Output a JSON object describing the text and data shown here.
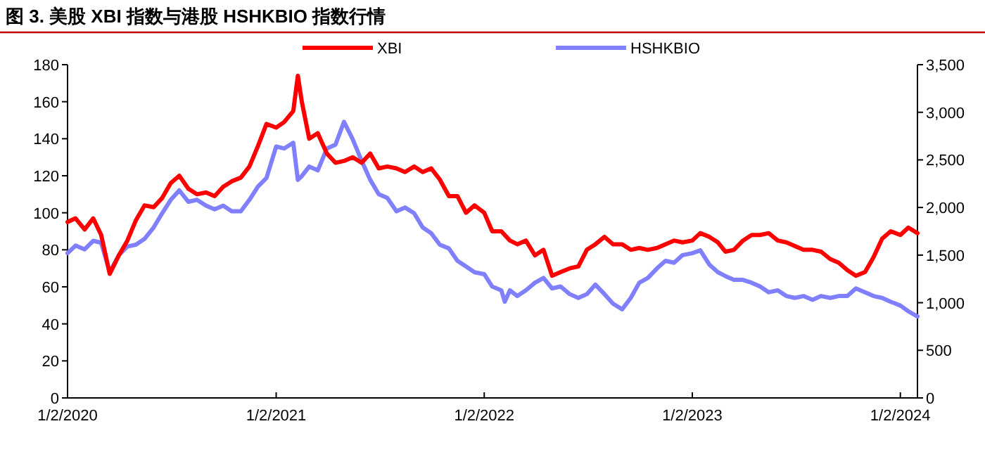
{
  "chart_data": {
    "type": "line",
    "title": "图 3. 美股 XBI 指数与港股 HSHKBIO 指数行情",
    "legend": "top",
    "grid": false,
    "marker": "none",
    "line_style": "solid",
    "x": [
      "2020-01-02",
      "2020-01-16",
      "2020-02-01",
      "2020-02-16",
      "2020-03-01",
      "2020-03-16",
      "2020-04-01",
      "2020-04-16",
      "2020-05-01",
      "2020-05-16",
      "2020-06-01",
      "2020-06-16",
      "2020-07-01",
      "2020-07-16",
      "2020-08-01",
      "2020-08-16",
      "2020-09-01",
      "2020-09-16",
      "2020-10-01",
      "2020-10-16",
      "2020-11-01",
      "2020-11-16",
      "2020-12-01",
      "2020-12-16",
      "2021-01-02",
      "2021-01-16",
      "2021-02-01",
      "2021-02-09",
      "2021-02-16",
      "2021-03-01",
      "2021-03-16",
      "2021-04-01",
      "2021-04-16",
      "2021-05-01",
      "2021-05-16",
      "2021-06-01",
      "2021-06-16",
      "2021-07-01",
      "2021-07-16",
      "2021-08-01",
      "2021-08-16",
      "2021-09-01",
      "2021-09-16",
      "2021-10-01",
      "2021-10-16",
      "2021-11-01",
      "2021-11-16",
      "2021-12-01",
      "2021-12-16",
      "2022-01-02",
      "2022-01-16",
      "2022-02-01",
      "2022-02-07",
      "2022-02-16",
      "2022-03-01",
      "2022-03-16",
      "2022-04-01",
      "2022-04-16",
      "2022-05-01",
      "2022-05-16",
      "2022-06-01",
      "2022-06-16",
      "2022-07-01",
      "2022-07-16",
      "2022-08-01",
      "2022-08-16",
      "2022-09-01",
      "2022-09-16",
      "2022-10-01",
      "2022-10-16",
      "2022-11-01",
      "2022-11-16",
      "2022-12-01",
      "2022-12-16",
      "2023-01-02",
      "2023-01-16",
      "2023-02-01",
      "2023-02-16",
      "2023-03-01",
      "2023-03-16",
      "2023-04-01",
      "2023-04-16",
      "2023-05-01",
      "2023-05-16",
      "2023-06-01",
      "2023-06-16",
      "2023-07-01",
      "2023-07-16",
      "2023-08-01",
      "2023-08-16",
      "2023-09-01",
      "2023-09-16",
      "2023-10-01",
      "2023-10-16",
      "2023-11-01",
      "2023-11-16",
      "2023-12-01",
      "2023-12-16",
      "2024-01-02",
      "2024-01-16",
      "2024-02-01"
    ],
    "series": [
      {
        "name": "XBI",
        "color": "#ff0000",
        "values": [
          95,
          97,
          91,
          97,
          88,
          67,
          77,
          85,
          96,
          104,
          103,
          108,
          116,
          120,
          113,
          110,
          111,
          109,
          114,
          117,
          119,
          125,
          136,
          148,
          146,
          149,
          155,
          174,
          160,
          140,
          143,
          132,
          127,
          128,
          130,
          127,
          132,
          124,
          125,
          124,
          122,
          125,
          122,
          124,
          118,
          109,
          109,
          100,
          104,
          100,
          90,
          90,
          88,
          85,
          83,
          85,
          77,
          80,
          66,
          68,
          70,
          71,
          80,
          83,
          87,
          83,
          83,
          80,
          81,
          80,
          81,
          83,
          85,
          84,
          85,
          89,
          87,
          84,
          79,
          80,
          85,
          88,
          88,
          89,
          85,
          84,
          82,
          80,
          80,
          79,
          75,
          73,
          69,
          66,
          68,
          76,
          86,
          90,
          88,
          92,
          89
        ]
      },
      {
        "name": "HSHKBIO",
        "color": "#8080ff",
        "axis": "y2",
        "values": [
          1520,
          1600,
          1560,
          1650,
          1630,
          1320,
          1500,
          1590,
          1610,
          1670,
          1790,
          1940,
          2080,
          2180,
          2060,
          2080,
          2020,
          1980,
          2020,
          1960,
          1960,
          2080,
          2220,
          2310,
          2640,
          2620,
          2680,
          2290,
          2330,
          2430,
          2390,
          2620,
          2660,
          2900,
          2720,
          2490,
          2290,
          2140,
          2100,
          1960,
          2000,
          1940,
          1790,
          1730,
          1610,
          1570,
          1440,
          1380,
          1320,
          1300,
          1170,
          1130,
          1010,
          1130,
          1070,
          1130,
          1210,
          1260,
          1150,
          1170,
          1090,
          1050,
          1090,
          1190,
          1090,
          990,
          930,
          1050,
          1210,
          1260,
          1360,
          1440,
          1420,
          1500,
          1520,
          1550,
          1400,
          1320,
          1280,
          1240,
          1240,
          1210,
          1170,
          1110,
          1130,
          1070,
          1050,
          1070,
          1030,
          1070,
          1050,
          1070,
          1070,
          1150,
          1110,
          1070,
          1050,
          1010,
          970,
          910,
          855
        ]
      }
    ],
    "xlim": [
      "2020-01-02",
      "2024-02-01"
    ],
    "xticks": [
      {
        "value": "2020-01-02",
        "label": "1/2/2020"
      },
      {
        "value": "2021-01-02",
        "label": "1/2/2021"
      },
      {
        "value": "2022-01-02",
        "label": "1/2/2022"
      },
      {
        "value": "2023-01-02",
        "label": "1/2/2023"
      },
      {
        "value": "2024-01-02",
        "label": "1/2/2024"
      }
    ],
    "ylim": [
      0,
      180
    ],
    "yticks": [
      0,
      20,
      40,
      60,
      80,
      100,
      120,
      140,
      160,
      180
    ],
    "y2lim": [
      0,
      3500
    ],
    "y2ticks": [
      {
        "value": 0,
        "label": "0"
      },
      {
        "value": 500,
        "label": "500"
      },
      {
        "value": 1000,
        "label": "1,000"
      },
      {
        "value": 1500,
        "label": "1,500"
      },
      {
        "value": 2000,
        "label": "2,000"
      },
      {
        "value": 2500,
        "label": "2,500"
      },
      {
        "value": 3000,
        "label": "3,000"
      },
      {
        "value": 3500,
        "label": "3,500"
      }
    ]
  }
}
